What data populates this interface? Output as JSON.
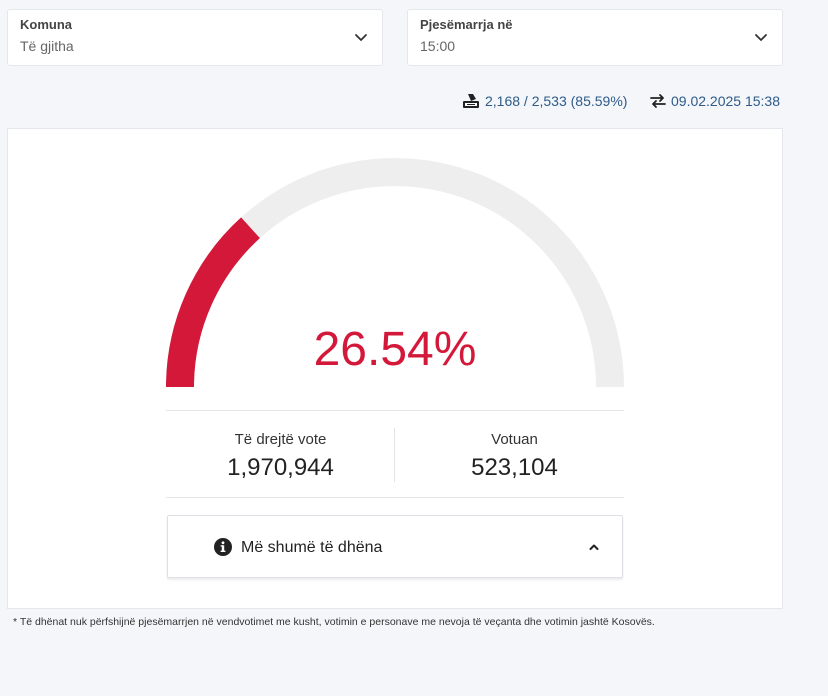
{
  "filters": {
    "municipality": {
      "label": "Komuna",
      "value": "Të gjitha"
    },
    "participation": {
      "label": "Pjesëmarrja në",
      "value": "15:00"
    }
  },
  "meta": {
    "stations": "2,168 / 2,533 (85.59%)",
    "updated": "09.02.2025 15:38"
  },
  "gauge": {
    "fraction": 0.2654,
    "percent_text": "26.54%",
    "fill_color": "#d3183a",
    "track_color": "#eeeeee"
  },
  "stats": {
    "eligible": {
      "label": "Të drejtë vote",
      "value": "1,970,944"
    },
    "voted": {
      "label": "Votuan",
      "value": "523,104"
    }
  },
  "more": {
    "label": "Më shumë të dhëna"
  },
  "footnote": "* Të dhënat nuk përfshijnë pjesëmarrjen në vendvotimet me kusht, votimin e personave me nevoja të veçanta dhe votimin jashtë Kosovës.",
  "icons": [
    "chevron-down-icon",
    "ballot-box-icon",
    "sync-arrows-icon",
    "info-icon",
    "chevron-up-icon"
  ]
}
